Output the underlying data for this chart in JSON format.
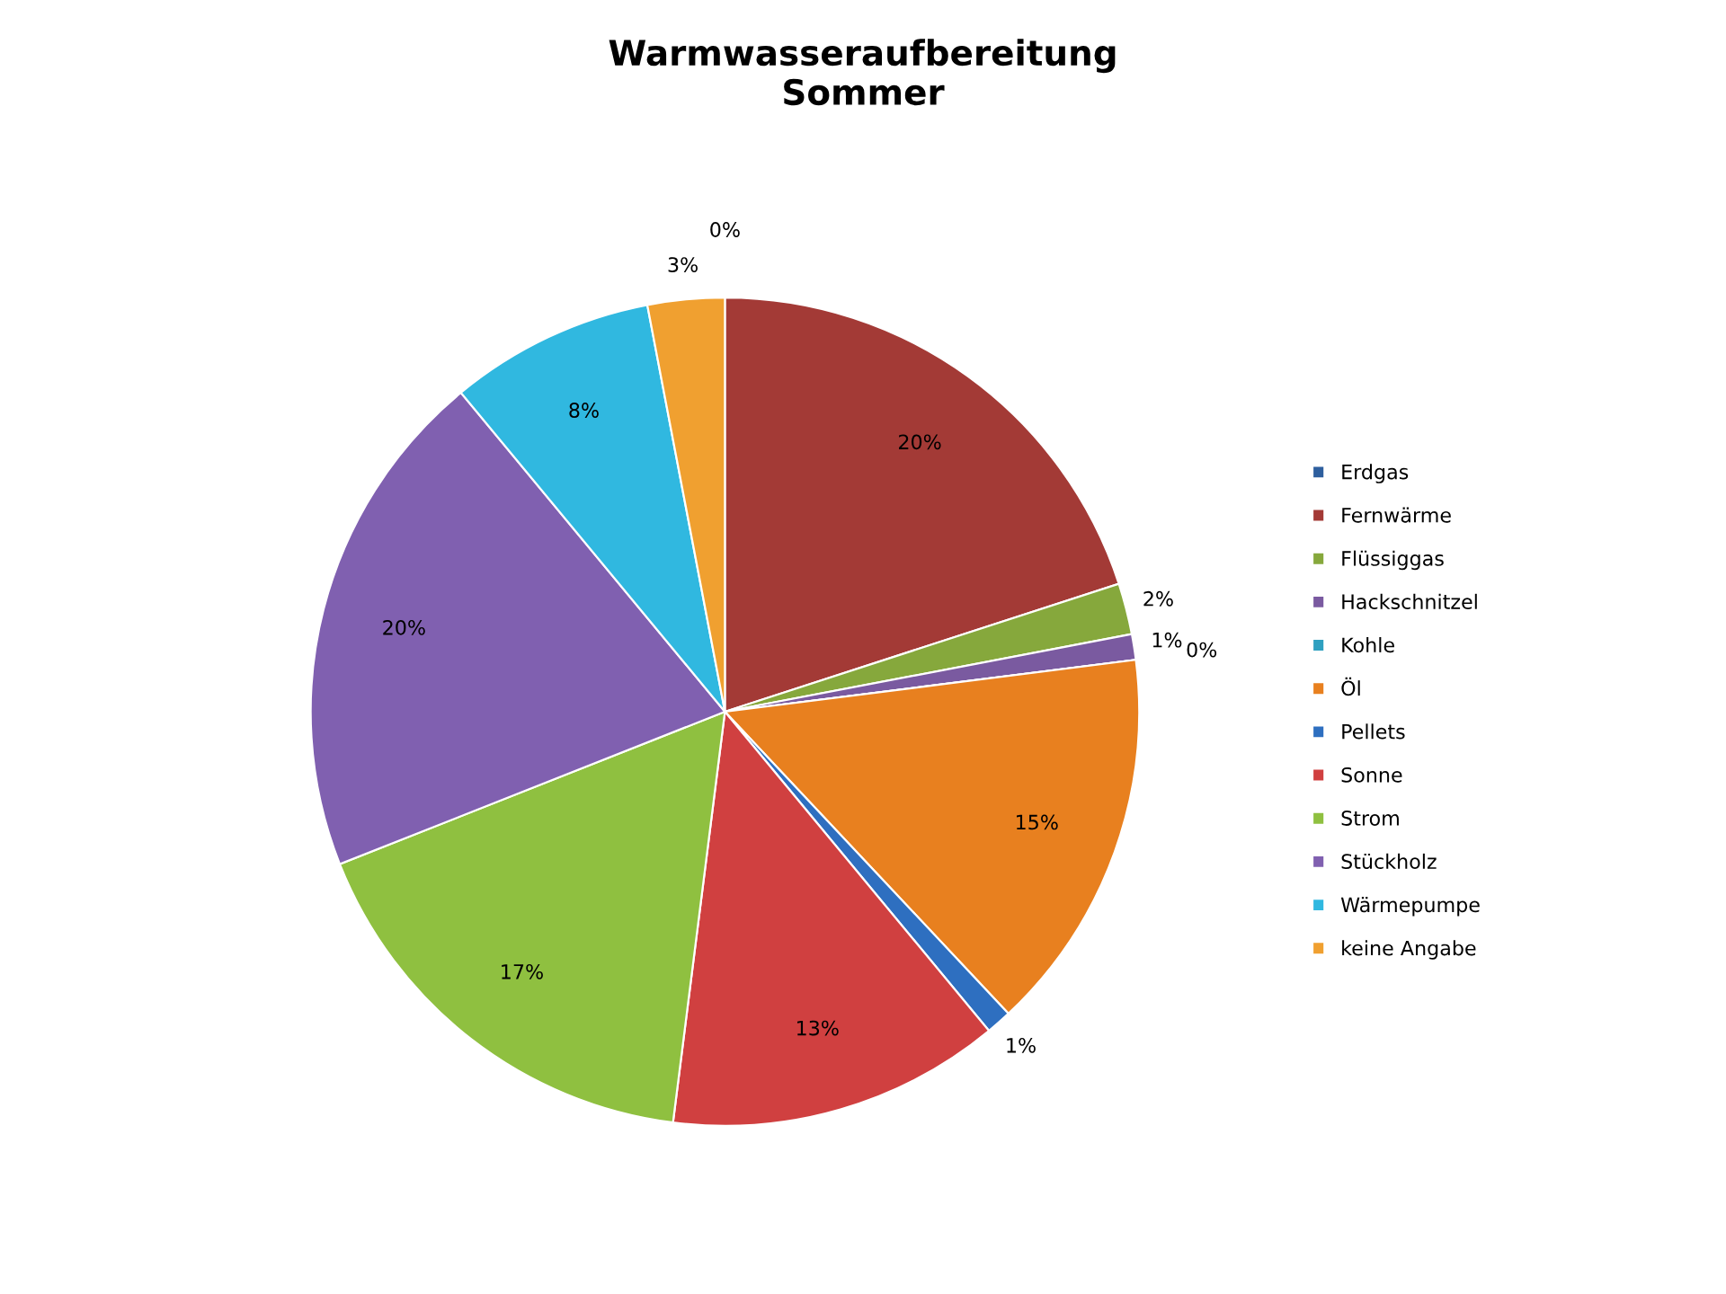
{
  "chart_data": {
    "type": "pie",
    "title": "Warmwasseraufbereitung\nSommer",
    "categories": [
      "Erdgas",
      "Fernwärme",
      "Flüssiggas",
      "Hackschnitzel",
      "Kohle",
      "Öl",
      "Pellets",
      "Sonne",
      "Strom",
      "Stückholz",
      "Wärmepumpe",
      "keine Angabe"
    ],
    "values": [
      0,
      20,
      2,
      1,
      0,
      15,
      1,
      13,
      17,
      20,
      8,
      3
    ],
    "value_labels": [
      "0%",
      "20%",
      "2%",
      "1%",
      "0%",
      "15%",
      "1%",
      "13%",
      "17%",
      "20%",
      "8%",
      "3%"
    ],
    "colors": [
      "#2e5f9e",
      "#a33a36",
      "#86a83c",
      "#7a5aa0",
      "#2fa0c0",
      "#e8801f",
      "#2e6fc0",
      "#d04040",
      "#8fc040",
      "#8060b0",
      "#30b8e0",
      "#f0a030"
    ],
    "legend": "right"
  }
}
